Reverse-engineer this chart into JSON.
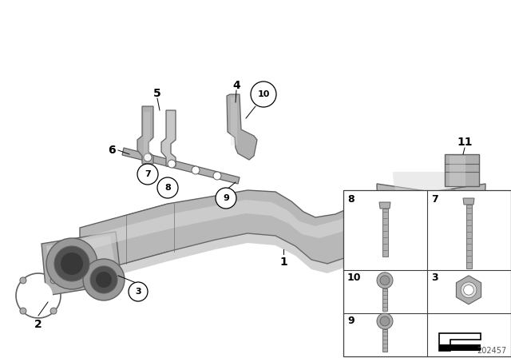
{
  "bg_color": "#ffffff",
  "diagram_id": "202457",
  "gray1": "#c8c8c8",
  "gray2": "#b0b0b0",
  "gray3": "#989898",
  "gray4": "#808080",
  "gray_light": "#e0e0e0",
  "gray_dark": "#606060",
  "lc": "#404040",
  "white": "#ffffff",
  "black": "#000000",
  "pipe_color": "#b8b8b8",
  "pipe_highlight": "#d8d8d8",
  "pipe_shadow": "#909090"
}
